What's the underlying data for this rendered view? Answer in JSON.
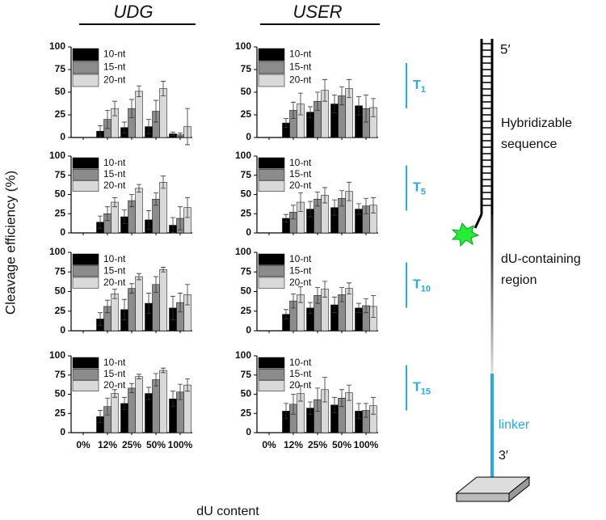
{
  "column_titles": [
    "UDG",
    "USER"
  ],
  "ylabel": "Cleavage efficiency (%)",
  "xlabel": "dU content",
  "row_labels": [
    {
      "main": "T",
      "sub": "1"
    },
    {
      "main": "T",
      "sub": "5"
    },
    {
      "main": "T",
      "sub": "10"
    },
    {
      "main": "T",
      "sub": "15"
    }
  ],
  "diagram": {
    "five_prime": "5′",
    "hybridizable": [
      "Hybridizable",
      "sequence"
    ],
    "du_region": [
      "dU-containing",
      "region"
    ],
    "linker": "linker",
    "three_prime": "3′"
  },
  "chart_data": [
    {
      "type": "bar",
      "categories": [
        null,
        null,
        null,
        null,
        null
      ],
      "ylim": [
        0,
        100
      ],
      "yticks": [
        0,
        25,
        50,
        75,
        100
      ],
      "series": [
        {
          "name": "10-nt",
          "color": "#000000",
          "values": [
            0,
            7,
            11,
            12,
            4
          ],
          "errors": [
            0,
            6,
            6,
            8,
            2
          ]
        },
        {
          "name": "15-nt",
          "color": "#8c8c8c",
          "values": [
            0,
            20,
            32,
            29,
            3
          ],
          "errors": [
            0,
            10,
            10,
            12,
            2
          ]
        },
        {
          "name": "20-nt",
          "color": "#d9d9d9",
          "values": [
            0,
            32,
            51,
            54,
            12
          ],
          "errors": [
            0,
            8,
            6,
            8,
            20
          ]
        }
      ]
    },
    {
      "type": "bar",
      "categories": [
        null,
        null,
        null,
        null,
        null
      ],
      "ylim": [
        0,
        100
      ],
      "yticks": [
        0,
        25,
        50,
        75,
        100
      ],
      "series": [
        {
          "name": "10-nt",
          "color": "#000000",
          "values": [
            0,
            16,
            28,
            37,
            35
          ],
          "errors": [
            0,
            5,
            6,
            10,
            10
          ]
        },
        {
          "name": "15-nt",
          "color": "#8c8c8c",
          "values": [
            0,
            30,
            40,
            46,
            32
          ],
          "errors": [
            0,
            9,
            10,
            10,
            15
          ]
        },
        {
          "name": "20-nt",
          "color": "#d9d9d9",
          "values": [
            0,
            37,
            52,
            54,
            33
          ],
          "errors": [
            0,
            12,
            12,
            10,
            10
          ]
        }
      ]
    },
    {
      "type": "bar",
      "categories": [
        null,
        null,
        null,
        null,
        null
      ],
      "ylim": [
        0,
        100
      ],
      "yticks": [
        0,
        25,
        50,
        75,
        100
      ],
      "series": [
        {
          "name": "10-nt",
          "color": "#000000",
          "values": [
            0,
            14,
            21,
            17,
            10
          ],
          "errors": [
            0,
            8,
            9,
            12,
            10
          ]
        },
        {
          "name": "15-nt",
          "color": "#8c8c8c",
          "values": [
            0,
            25,
            42,
            44,
            19
          ],
          "errors": [
            0,
            9,
            8,
            8,
            15
          ]
        },
        {
          "name": "20-nt",
          "color": "#d9d9d9",
          "values": [
            0,
            40,
            58,
            66,
            33
          ],
          "errors": [
            0,
            6,
            5,
            8,
            13
          ]
        }
      ]
    },
    {
      "type": "bar",
      "categories": [
        null,
        null,
        null,
        null,
        null
      ],
      "ylim": [
        0,
        100
      ],
      "yticks": [
        0,
        25,
        50,
        75,
        100
      ],
      "series": [
        {
          "name": "10-nt",
          "color": "#000000",
          "values": [
            0,
            19,
            31,
            33,
            31
          ],
          "errors": [
            0,
            5,
            10,
            10,
            7
          ]
        },
        {
          "name": "15-nt",
          "color": "#8c8c8c",
          "values": [
            0,
            27,
            44,
            45,
            35
          ],
          "errors": [
            0,
            9,
            9,
            10,
            10
          ]
        },
        {
          "name": "20-nt",
          "color": "#d9d9d9",
          "values": [
            0,
            40,
            49,
            54,
            36
          ],
          "errors": [
            0,
            12,
            10,
            12,
            10
          ]
        }
      ]
    },
    {
      "type": "bar",
      "categories": [
        null,
        null,
        null,
        null,
        null
      ],
      "ylim": [
        0,
        100
      ],
      "yticks": [
        0,
        25,
        50,
        75,
        100
      ],
      "series": [
        {
          "name": "10-nt",
          "color": "#000000",
          "values": [
            0,
            15,
            27,
            35,
            29
          ],
          "errors": [
            0,
            8,
            13,
            13,
            15
          ]
        },
        {
          "name": "15-nt",
          "color": "#8c8c8c",
          "values": [
            0,
            31,
            54,
            59,
            36
          ],
          "errors": [
            0,
            8,
            6,
            10,
            12
          ]
        },
        {
          "name": "20-nt",
          "color": "#d9d9d9",
          "values": [
            0,
            47,
            69,
            78,
            46
          ],
          "errors": [
            0,
            6,
            4,
            3,
            13
          ]
        }
      ]
    },
    {
      "type": "bar",
      "categories": [
        null,
        null,
        null,
        null,
        null
      ],
      "ylim": [
        0,
        100
      ],
      "yticks": [
        0,
        25,
        50,
        75,
        100
      ],
      "series": [
        {
          "name": "10-nt",
          "color": "#000000",
          "values": [
            0,
            21,
            29,
            33,
            29
          ],
          "errors": [
            0,
            6,
            7,
            10,
            6
          ]
        },
        {
          "name": "15-nt",
          "color": "#8c8c8c",
          "values": [
            0,
            38,
            45,
            46,
            32
          ],
          "errors": [
            0,
            9,
            10,
            9,
            9
          ]
        },
        {
          "name": "20-nt",
          "color": "#d9d9d9",
          "values": [
            0,
            46,
            53,
            54,
            31
          ],
          "errors": [
            0,
            10,
            10,
            7,
            14
          ]
        }
      ]
    },
    {
      "type": "bar",
      "categories": [
        "0%",
        "12%",
        "25%",
        "50%",
        "100%"
      ],
      "ylim": [
        0,
        100
      ],
      "yticks": [
        0,
        25,
        50,
        75,
        100
      ],
      "series": [
        {
          "name": "10-nt",
          "color": "#000000",
          "values": [
            0,
            21,
            38,
            51,
            44
          ],
          "errors": [
            0,
            8,
            8,
            8,
            10
          ]
        },
        {
          "name": "15-nt",
          "color": "#8c8c8c",
          "values": [
            0,
            34,
            58,
            69,
            53
          ],
          "errors": [
            0,
            11,
            6,
            8,
            10
          ]
        },
        {
          "name": "20-nt",
          "color": "#d9d9d9",
          "values": [
            0,
            51,
            73,
            81,
            62
          ],
          "errors": [
            0,
            5,
            3,
            3,
            8
          ]
        }
      ]
    },
    {
      "type": "bar",
      "categories": [
        "0%",
        "12%",
        "25%",
        "50%",
        "100%"
      ],
      "ylim": [
        0,
        100
      ],
      "yticks": [
        0,
        25,
        50,
        75,
        100
      ],
      "series": [
        {
          "name": "10-nt",
          "color": "#000000",
          "values": [
            0,
            28,
            32,
            36,
            28
          ],
          "errors": [
            0,
            10,
            8,
            10,
            10
          ]
        },
        {
          "name": "15-nt",
          "color": "#8c8c8c",
          "values": [
            0,
            37,
            43,
            45,
            29
          ],
          "errors": [
            0,
            13,
            15,
            11,
            9
          ]
        },
        {
          "name": "20-nt",
          "color": "#d9d9d9",
          "values": [
            0,
            51,
            56,
            52,
            35
          ],
          "errors": [
            0,
            10,
            16,
            10,
            11
          ]
        }
      ]
    }
  ]
}
